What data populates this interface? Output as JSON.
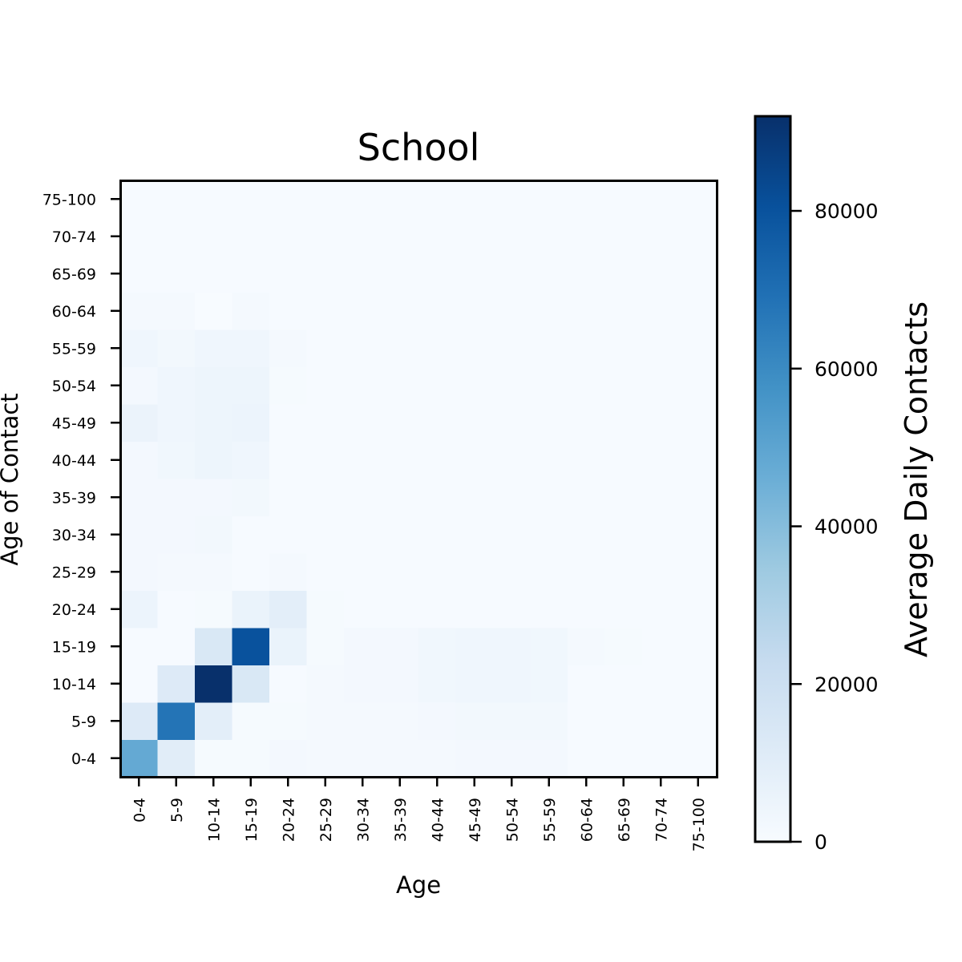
{
  "chart_data": {
    "type": "heatmap",
    "title": "School",
    "xlabel": "Age",
    "ylabel": "Age of Contact",
    "x_categories": [
      "0-4",
      "5-9",
      "10-14",
      "15-19",
      "20-24",
      "25-29",
      "30-34",
      "35-39",
      "40-44",
      "45-49",
      "50-54",
      "55-59",
      "60-64",
      "65-69",
      "70-74",
      "75-100"
    ],
    "y_categories": [
      "0-4",
      "5-9",
      "10-14",
      "15-19",
      "20-24",
      "25-29",
      "30-34",
      "35-39",
      "40-44",
      "45-49",
      "50-54",
      "55-59",
      "60-64",
      "65-69",
      "70-74",
      "75-100"
    ],
    "values": [
      [
        48000,
        10000,
        1000,
        1000,
        2000,
        1500,
        1500,
        1500,
        1500,
        2000,
        2000,
        2000,
        500,
        500,
        500,
        500
      ],
      [
        12000,
        68000,
        9000,
        1000,
        1000,
        1500,
        1500,
        1500,
        2000,
        2500,
        2500,
        2500,
        500,
        500,
        500,
        500
      ],
      [
        500,
        12000,
        92000,
        14000,
        500,
        1500,
        2000,
        2000,
        3000,
        3500,
        3500,
        3000,
        500,
        500,
        500,
        500
      ],
      [
        500,
        500,
        14000,
        80000,
        6000,
        1000,
        2000,
        2000,
        3000,
        3500,
        3500,
        3000,
        1500,
        1000,
        500,
        500
      ],
      [
        5000,
        500,
        1000,
        6000,
        9000,
        1000,
        500,
        500,
        500,
        500,
        500,
        500,
        500,
        500,
        500,
        500
      ],
      [
        2000,
        1500,
        1500,
        500,
        1500,
        500,
        500,
        500,
        500,
        500,
        500,
        500,
        500,
        500,
        500,
        500
      ],
      [
        2000,
        2000,
        2500,
        500,
        500,
        500,
        500,
        500,
        500,
        500,
        500,
        500,
        500,
        500,
        500,
        500
      ],
      [
        2000,
        2000,
        2000,
        2500,
        500,
        500,
        500,
        500,
        500,
        500,
        500,
        500,
        500,
        500,
        500,
        500
      ],
      [
        2000,
        3000,
        4500,
        3500,
        500,
        500,
        500,
        500,
        500,
        500,
        500,
        500,
        500,
        500,
        500,
        500
      ],
      [
        5500,
        3500,
        4500,
        5000,
        500,
        500,
        500,
        500,
        500,
        500,
        500,
        500,
        500,
        500,
        500,
        500
      ],
      [
        2000,
        3500,
        4500,
        4500,
        1000,
        500,
        500,
        500,
        500,
        500,
        500,
        500,
        500,
        500,
        500,
        500
      ],
      [
        3500,
        2500,
        3500,
        3500,
        1500,
        500,
        500,
        500,
        500,
        500,
        500,
        500,
        500,
        500,
        500,
        500
      ],
      [
        1500,
        1500,
        0,
        1500,
        500,
        500,
        500,
        500,
        500,
        500,
        500,
        500,
        500,
        500,
        500,
        500
      ],
      [
        500,
        500,
        500,
        500,
        500,
        500,
        500,
        500,
        500,
        500,
        500,
        500,
        500,
        500,
        500,
        500
      ],
      [
        500,
        500,
        500,
        500,
        500,
        500,
        500,
        500,
        500,
        500,
        500,
        500,
        500,
        500,
        500,
        500
      ],
      [
        500,
        500,
        500,
        500,
        500,
        500,
        500,
        500,
        500,
        500,
        500,
        500,
        500,
        500,
        500,
        500
      ]
    ],
    "values_note_rows": "rows ordered from bottom (0-4) to top (75-100)",
    "colorbar": {
      "label": "Average Daily Contacts",
      "min": 0,
      "max": 92000,
      "ticks": [
        0,
        20000,
        40000,
        60000,
        80000
      ],
      "tick_labels": [
        "0",
        "20000",
        "40000",
        "60000",
        "80000"
      ],
      "colormap": "Blues"
    },
    "grid": false,
    "legend": "none"
  }
}
